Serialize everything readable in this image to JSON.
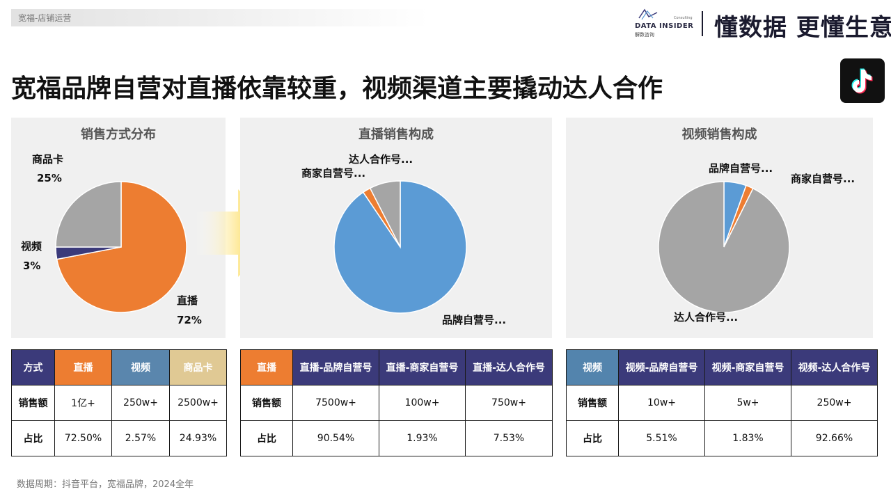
{
  "header": {
    "breadcrumb": "宽福-店铺运营",
    "logo_name": "DATA INSIDER",
    "logo_sub": "解数咨询",
    "logo_consult": "Consulting",
    "slogan": "懂数据 更懂生意"
  },
  "page_title": "宽福品牌自营对直播依靠较重，视频渠道主要撬动达人合作",
  "icons": {
    "platform_logo": "tiktok-icon",
    "transition_arrow": "arrow-right-icon"
  },
  "colors": {
    "orange": "#ED7D31",
    "navy": "#3B3A7A",
    "blue": "#5B9BD5",
    "gray": "#A5A5A5",
    "steel_blue": "#5A86AD",
    "sand": "#E0C994"
  },
  "chart_data": [
    {
      "type": "pie",
      "title": "销售方式分布",
      "labels": [
        "直播",
        "视频",
        "商品卡"
      ],
      "values": [
        72,
        3,
        25
      ],
      "label_texts": [
        "72%",
        "3%",
        "25%"
      ],
      "colors": [
        "#ED7D31",
        "#3B3A7A",
        "#A5A5A5"
      ]
    },
    {
      "type": "pie",
      "title": "直播销售构成",
      "labels": [
        "品牌自营号...",
        "商家自营号...",
        "达人合作号..."
      ],
      "values": [
        90.54,
        1.93,
        7.53
      ],
      "colors": [
        "#5B9BD5",
        "#ED7D31",
        "#A5A5A5"
      ]
    },
    {
      "type": "pie",
      "title": "视频销售构成",
      "labels": [
        "品牌自营号...",
        "商家自营号...",
        "达人合作号..."
      ],
      "values": [
        5.51,
        1.83,
        92.66
      ],
      "colors": [
        "#5B9BD5",
        "#ED7D31",
        "#A5A5A5"
      ]
    }
  ],
  "tables": [
    {
      "headers": [
        "方式",
        "直播",
        "视频",
        "商品卡"
      ],
      "rows": [
        [
          "销售额",
          "1亿+",
          "250w+",
          "2500w+"
        ],
        [
          "占比",
          "72.50%",
          "2.57%",
          "24.93%"
        ]
      ]
    },
    {
      "headers": [
        "直播",
        "直播-品牌自营号",
        "直播-商家自营号",
        "直播-达人合作号"
      ],
      "rows": [
        [
          "销售额",
          "7500w+",
          "100w+",
          "750w+"
        ],
        [
          "占比",
          "90.54%",
          "1.93%",
          "7.53%"
        ]
      ]
    },
    {
      "headers": [
        "视频",
        "视频-品牌自营号",
        "视频-商家自营号",
        "视频-达人合作号"
      ],
      "rows": [
        [
          "销售额",
          "10w+",
          "5w+",
          "250w+"
        ],
        [
          "占比",
          "5.51%",
          "1.83%",
          "92.66%"
        ]
      ]
    }
  ],
  "footnote": "数据周期：抖音平台，宽福品牌，2024全年"
}
